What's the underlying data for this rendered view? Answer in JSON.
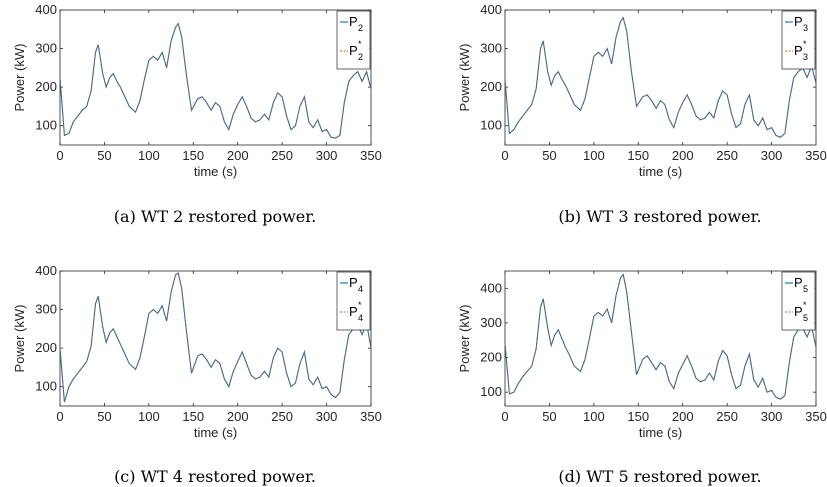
{
  "colors": {
    "measured": "#0072BD",
    "restored": "#D95319",
    "axis": "#262626"
  },
  "chart_data": [
    {
      "type": "line",
      "caption": "(a) WT 2 restored power.",
      "xlabel": "time (s)",
      "ylabel": "Power (kW)",
      "xlim": [
        0,
        350
      ],
      "ylim": [
        50,
        400
      ],
      "xticks": [
        0,
        50,
        100,
        150,
        200,
        250,
        300,
        350
      ],
      "yticks": [
        100,
        200,
        300,
        400
      ],
      "legend_location": "top-right",
      "series": [
        {
          "name": "P",
          "sub": "2",
          "sup": "",
          "style": "solid"
        },
        {
          "name": "P",
          "sub": "2",
          "sup": "*",
          "style": "dashed"
        }
      ],
      "x": [
        0,
        5,
        10,
        15,
        20,
        25,
        30,
        35,
        40,
        43,
        48,
        52,
        56,
        60,
        64,
        68,
        72,
        78,
        85,
        90,
        95,
        100,
        105,
        110,
        115,
        120,
        125,
        130,
        133,
        137,
        142,
        148,
        155,
        160,
        165,
        170,
        175,
        180,
        185,
        190,
        195,
        200,
        205,
        210,
        215,
        220,
        225,
        230,
        235,
        240,
        245,
        250,
        255,
        260,
        265,
        270,
        275,
        280,
        285,
        290,
        295,
        300,
        305,
        310,
        315,
        320,
        325,
        330,
        335,
        340,
        345,
        350
      ],
      "y": [
        225,
        75,
        80,
        110,
        125,
        140,
        150,
        190,
        290,
        310,
        235,
        200,
        225,
        235,
        215,
        200,
        180,
        150,
        135,
        165,
        220,
        270,
        280,
        270,
        290,
        250,
        320,
        355,
        365,
        330,
        235,
        140,
        170,
        175,
        160,
        140,
        160,
        150,
        110,
        90,
        130,
        155,
        175,
        150,
        120,
        110,
        115,
        130,
        115,
        160,
        185,
        175,
        125,
        90,
        100,
        150,
        175,
        110,
        95,
        115,
        85,
        90,
        70,
        68,
        75,
        160,
        215,
        230,
        240,
        215,
        240,
        195
      ]
    },
    {
      "type": "line",
      "caption": "(b) WT 3 restored power.",
      "xlabel": "time (s)",
      "ylabel": "Power (kW)",
      "xlim": [
        0,
        350
      ],
      "ylim": [
        50,
        400
      ],
      "xticks": [
        0,
        50,
        100,
        150,
        200,
        250,
        300,
        350
      ],
      "yticks": [
        100,
        200,
        300,
        400
      ],
      "legend_location": "top-right",
      "series": [
        {
          "name": "P",
          "sub": "3",
          "sup": "",
          "style": "solid"
        },
        {
          "name": "P",
          "sub": "3",
          "sup": "*",
          "style": "dashed"
        }
      ],
      "x": [
        0,
        5,
        10,
        15,
        20,
        25,
        30,
        35,
        40,
        43,
        48,
        52,
        56,
        60,
        64,
        68,
        72,
        78,
        85,
        90,
        95,
        100,
        105,
        110,
        115,
        120,
        125,
        130,
        133,
        137,
        142,
        148,
        155,
        160,
        165,
        170,
        175,
        180,
        185,
        190,
        195,
        200,
        205,
        210,
        215,
        220,
        225,
        230,
        235,
        240,
        245,
        250,
        255,
        260,
        265,
        270,
        275,
        280,
        285,
        290,
        295,
        300,
        305,
        310,
        315,
        320,
        325,
        330,
        335,
        340,
        345,
        350
      ],
      "y": [
        220,
        80,
        90,
        110,
        125,
        140,
        155,
        195,
        300,
        320,
        240,
        205,
        230,
        240,
        220,
        205,
        185,
        155,
        140,
        170,
        225,
        280,
        290,
        280,
        300,
        260,
        330,
        370,
        380,
        345,
        245,
        150,
        175,
        180,
        165,
        145,
        165,
        155,
        115,
        95,
        135,
        160,
        180,
        155,
        125,
        115,
        120,
        135,
        120,
        165,
        190,
        180,
        130,
        95,
        105,
        155,
        180,
        115,
        100,
        120,
        90,
        95,
        75,
        70,
        80,
        165,
        225,
        240,
        250,
        225,
        255,
        210
      ]
    },
    {
      "type": "line",
      "caption": "(c) WT 4 restored power.",
      "xlabel": "time (s)",
      "ylabel": "Power (kW)",
      "xlim": [
        0,
        350
      ],
      "ylim": [
        50,
        400
      ],
      "xticks": [
        0,
        50,
        100,
        150,
        200,
        250,
        300,
        350
      ],
      "yticks": [
        100,
        200,
        300,
        400
      ],
      "legend_location": "top-right",
      "series": [
        {
          "name": "P",
          "sub": "4",
          "sup": "",
          "style": "solid"
        },
        {
          "name": "P",
          "sub": "4",
          "sup": "*",
          "style": "dashed"
        }
      ],
      "x": [
        0,
        5,
        10,
        15,
        20,
        25,
        30,
        35,
        40,
        43,
        48,
        52,
        56,
        60,
        64,
        68,
        72,
        78,
        85,
        90,
        95,
        100,
        105,
        110,
        115,
        120,
        125,
        130,
        133,
        137,
        142,
        148,
        155,
        160,
        165,
        170,
        175,
        180,
        185,
        190,
        195,
        200,
        205,
        210,
        215,
        220,
        225,
        230,
        235,
        240,
        245,
        250,
        255,
        260,
        265,
        270,
        275,
        280,
        285,
        290,
        295,
        300,
        305,
        310,
        315,
        320,
        325,
        330,
        335,
        340,
        345,
        350
      ],
      "y": [
        200,
        60,
        100,
        120,
        135,
        150,
        165,
        205,
        315,
        335,
        255,
        215,
        240,
        250,
        230,
        210,
        190,
        160,
        145,
        175,
        230,
        290,
        300,
        290,
        310,
        270,
        345,
        390,
        395,
        355,
        250,
        135,
        180,
        185,
        170,
        150,
        170,
        160,
        120,
        100,
        140,
        165,
        190,
        160,
        130,
        120,
        125,
        140,
        125,
        175,
        200,
        190,
        135,
        100,
        110,
        160,
        190,
        120,
        105,
        125,
        95,
        100,
        80,
        72,
        85,
        170,
        235,
        250,
        260,
        235,
        265,
        200
      ]
    },
    {
      "type": "line",
      "caption": "(d) WT 5 restored power.",
      "xlabel": "time (s)",
      "ylabel": "Power (kW)",
      "xlim": [
        0,
        350
      ],
      "ylim": [
        60,
        450
      ],
      "xticks": [
        0,
        50,
        100,
        150,
        200,
        250,
        300,
        350
      ],
      "yticks": [
        100,
        200,
        300,
        400
      ],
      "legend_location": "top-right",
      "series": [
        {
          "name": "P",
          "sub": "5",
          "sup": "",
          "style": "solid"
        },
        {
          "name": "P",
          "sub": "5",
          "sup": "*",
          "style": "dashed"
        }
      ],
      "x": [
        0,
        5,
        10,
        15,
        20,
        25,
        30,
        35,
        40,
        43,
        48,
        52,
        56,
        60,
        64,
        68,
        72,
        78,
        85,
        90,
        95,
        100,
        105,
        110,
        115,
        120,
        125,
        130,
        133,
        137,
        142,
        148,
        155,
        160,
        165,
        170,
        175,
        180,
        185,
        190,
        195,
        200,
        205,
        210,
        215,
        220,
        225,
        230,
        235,
        240,
        245,
        250,
        255,
        260,
        265,
        270,
        275,
        280,
        285,
        290,
        295,
        300,
        305,
        310,
        315,
        320,
        325,
        330,
        335,
        340,
        345,
        350
      ],
      "y": [
        240,
        95,
        100,
        125,
        145,
        160,
        175,
        225,
        345,
        370,
        285,
        235,
        265,
        280,
        255,
        230,
        210,
        175,
        160,
        195,
        255,
        320,
        330,
        320,
        340,
        300,
        380,
        430,
        440,
        390,
        280,
        150,
        195,
        205,
        185,
        165,
        185,
        175,
        130,
        110,
        155,
        180,
        205,
        175,
        140,
        130,
        135,
        155,
        135,
        190,
        220,
        205,
        150,
        110,
        120,
        175,
        210,
        135,
        115,
        140,
        100,
        105,
        85,
        80,
        90,
        185,
        260,
        280,
        285,
        260,
        290,
        230
      ]
    }
  ]
}
